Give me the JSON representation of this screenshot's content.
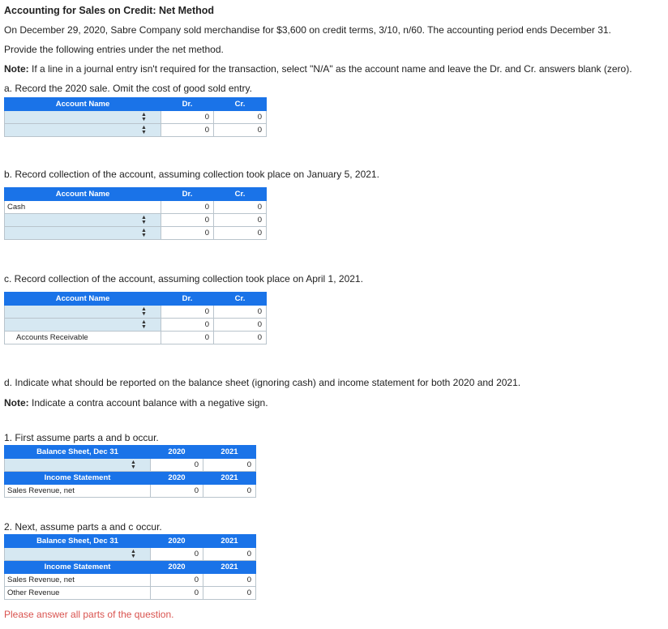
{
  "title": "Accounting for Sales on Credit: Net Method",
  "intro": "On December 29, 2020, Sabre Company sold merchandise for $3,600 on credit terms, 3/10, n/60. The accounting period ends December 31.",
  "provide": "Provide the following entries under the net method.",
  "note1_label": "Note:",
  "note1_text": " If a line in a journal entry isn't required for the transaction, select \"N/A\" as the account name and leave the Dr. and Cr. answers blank (zero).",
  "part_a": "a. Record the 2020 sale. Omit the cost of good sold entry.",
  "part_b": "b. Record collection of the account, assuming collection took place on January 5, 2021.",
  "part_c": "c. Record collection of the account, assuming collection took place on April 1, 2021.",
  "part_d": "d. Indicate what should be reported on the balance sheet (ignoring cash) and income statement for both 2020 and 2021.",
  "note2_label": "Note:",
  "note2_text": " Indicate a contra account balance with a negative sign.",
  "hdr": {
    "account": "Account Name",
    "dr": "Dr.",
    "cr": "Cr.",
    "bs": "Balance Sheet, Dec 31",
    "is": "Income Statement",
    "y2020": "2020",
    "y2021": "2021"
  },
  "zero": "0",
  "b_row1": "Cash",
  "c_row3": "Accounts Receivable",
  "d1": "1. First assume parts a and b occur.",
  "d2": "2. Next, assume parts a and c occur.",
  "sales_rev": "Sales Revenue, net",
  "other_rev": "Other Revenue",
  "footer": "Please answer all parts of the question.",
  "colors": {
    "header_blue": "#1a73e8",
    "cell_blue": "#d6e8f2",
    "warning_red": "#d9534f"
  },
  "icons": {
    "dropdown": "select-arrows-icon"
  }
}
